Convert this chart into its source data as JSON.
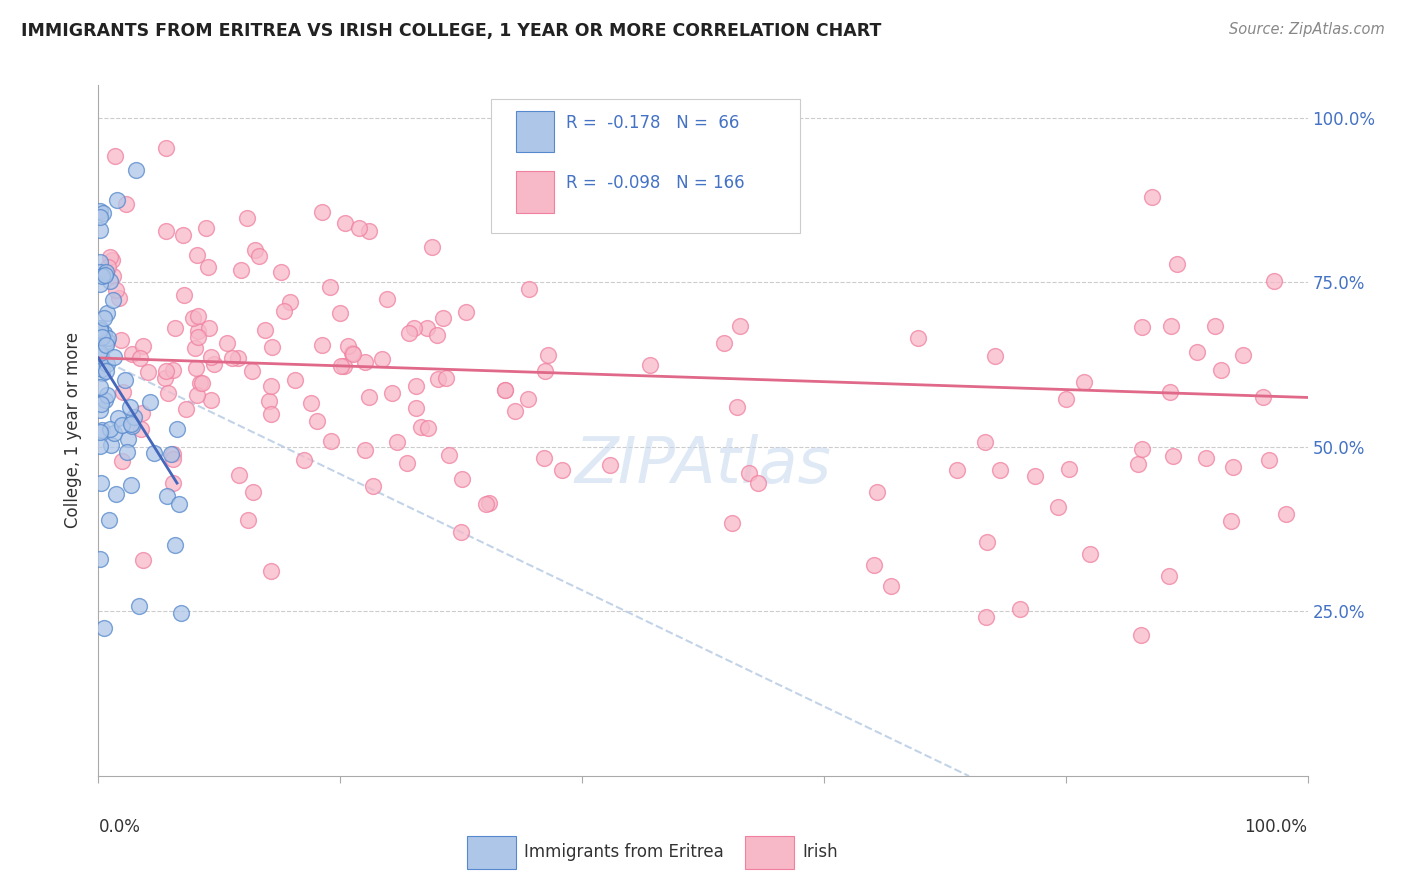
{
  "title": "IMMIGRANTS FROM ERITREA VS IRISH COLLEGE, 1 YEAR OR MORE CORRELATION CHART",
  "source": "Source: ZipAtlas.com",
  "ylabel": "College, 1 year or more",
  "watermark": "ZIPAtlas",
  "legend_line1": "R =  -0.178   N =  66",
  "legend_line2": "R =  -0.098   N = 166",
  "color_blue_face": "#aec6e8",
  "color_blue_edge": "#5588cc",
  "color_pink_face": "#f7b8c8",
  "color_pink_edge": "#f080a0",
  "line_blue_color": "#4466bb",
  "line_pink_color": "#e06888",
  "line_dashed_color": "#b8cce4",
  "grid_color": "#cccccc",
  "right_tick_color": "#4472c4",
  "title_color": "#222222",
  "source_color": "#888888",
  "ylabel_color": "#333333"
}
